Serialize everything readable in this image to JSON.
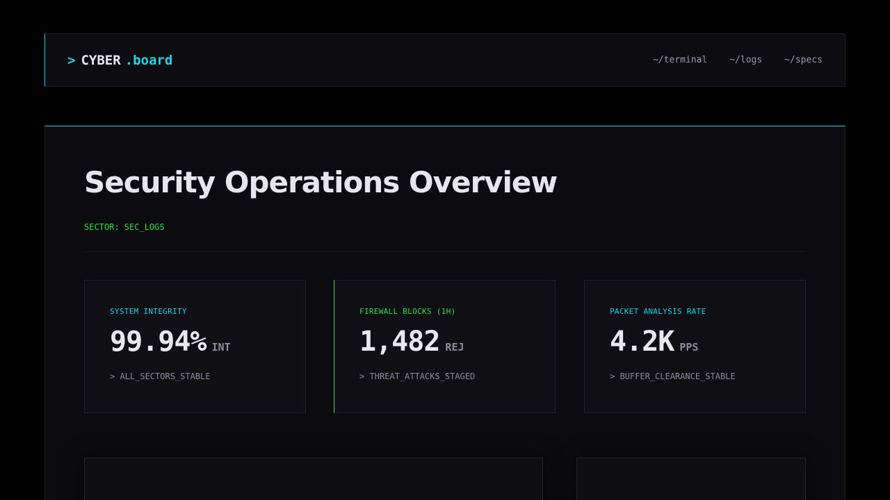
{
  "brand": {
    "prompt": ">",
    "name": "CYBER",
    "ext": ".board"
  },
  "nav": [
    {
      "label": "~/terminal"
    },
    {
      "label": "~/logs"
    },
    {
      "label": "~/specs"
    }
  ],
  "page": {
    "title": "Security Operations Overview",
    "sector": "SECTOR: SEC_LOGS"
  },
  "cards": [
    {
      "label": "SYSTEM INTEGRITY",
      "value": "99.94%",
      "unit": "INT",
      "status": "> ALL_SECTORS_STABLE"
    },
    {
      "label": "FIREWALL BLOCKS (1H)",
      "value": "1,482",
      "unit": "REJ",
      "status": "> THREAT_ATTACKS_STAGED"
    },
    {
      "label": "PACKET ANALYSIS RATE",
      "value": "4.2K",
      "unit": "PPS",
      "status": "> BUFFER_CLEARANCE_STABLE"
    }
  ],
  "colors": {
    "accent_cyan": "#22d3ee",
    "accent_green": "#39e04a",
    "background": "#020203",
    "panel": "#0c0c10"
  }
}
